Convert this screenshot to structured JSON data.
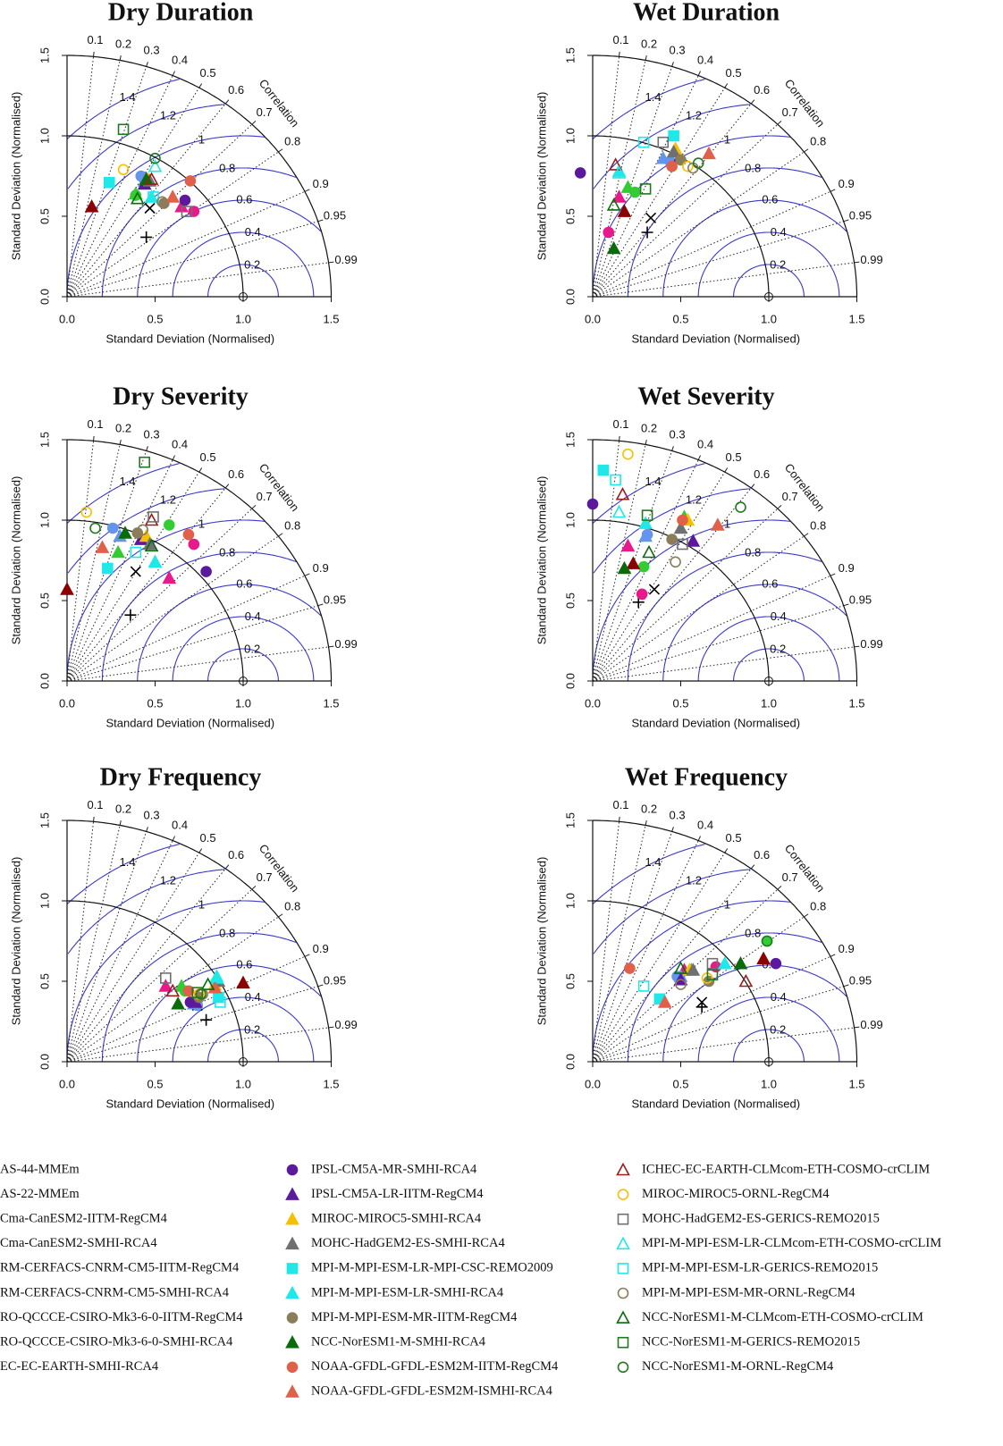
{
  "chart_data": [
    {
      "type": "taylor",
      "title": "Dry Duration",
      "xlabel": "Standard Deviation (Normalised)",
      "ylabel": "Standard Deviation (Normalised)",
      "corr_label": "Correlation",
      "xlim": [
        0,
        1.5
      ],
      "ylim": [
        0,
        1.5
      ],
      "xticks": [
        {
          "value": 0,
          "label": "0.0"
        },
        0.5,
        {
          "value": 1,
          "label": "1.0"
        },
        1.5
      ],
      "yticks": [
        {
          "value": 0,
          "label": "0.0"
        },
        0.5,
        {
          "value": 1,
          "label": "1.0"
        },
        1.5
      ],
      "corr_ticks": [
        0.1,
        0.2,
        0.3,
        0.4,
        0.5,
        0.6,
        0.7,
        0.8,
        0.9,
        0.95,
        0.99
      ],
      "rms_ticks": [
        0.2,
        0.4,
        0.6,
        0.8,
        1,
        1.2,
        1.4
      ],
      "reference": 1,
      "x": [
        0.47,
        0.45,
        0.39,
        0.39,
        0.72,
        0.65,
        0.42,
        0.44,
        0.14,
        0.67,
        0.44,
        0.46,
        0.47,
        0.24,
        0.48,
        0.55,
        0.45,
        0.7,
        0.6,
        0.48,
        0.32,
        0.68,
        0.5,
        0.49,
        0.54,
        0.4,
        0.32,
        0.5
      ],
      "y": [
        0.55,
        0.37,
        0.63,
        0.64,
        0.53,
        0.56,
        0.75,
        0.72,
        0.56,
        0.6,
        0.7,
        0.73,
        0.72,
        0.71,
        0.62,
        0.58,
        0.73,
        0.72,
        0.62,
        0.73,
        0.79,
        0.53,
        0.81,
        0.62,
        0.59,
        0.61,
        1.04,
        0.86
      ]
    },
    {
      "type": "taylor",
      "title": "Wet Duration",
      "xlabel": "Standard Deviation (Normalised)",
      "ylabel": "Standard Deviation (Normalised)",
      "corr_label": "Correlation",
      "xlim": [
        0,
        1.5
      ],
      "ylim": [
        0,
        1.5
      ],
      "xticks": [
        {
          "value": 0,
          "label": "0.0"
        },
        0.5,
        {
          "value": 1,
          "label": "1.0"
        },
        1.5
      ],
      "yticks": [
        {
          "value": 0,
          "label": "0.0"
        },
        0.5,
        {
          "value": 1,
          "label": "1.0"
        },
        1.5
      ],
      "corr_ticks": [
        0.1,
        0.2,
        0.3,
        0.4,
        0.5,
        0.6,
        0.7,
        0.8,
        0.9,
        0.95,
        0.99
      ],
      "rms_ticks": [
        0.2,
        0.4,
        0.6,
        0.8,
        1,
        1.2,
        1.4
      ],
      "reference": 1,
      "x": [
        0.33,
        0.31,
        0.24,
        0.2,
        0.09,
        0.15,
        0.44,
        0.4,
        0.18,
        -0.07,
        0.49,
        0.47,
        0.46,
        0.46,
        0.15,
        0.5,
        0.12,
        0.45,
        0.66,
        0.13,
        0.54,
        0.4,
        0.15,
        0.29,
        0.57,
        0.12,
        0.3,
        0.6
      ],
      "y": [
        0.49,
        0.4,
        0.65,
        0.68,
        0.4,
        0.62,
        0.84,
        0.86,
        0.53,
        0.77,
        0.86,
        0.92,
        0.9,
        1.0,
        0.78,
        0.85,
        0.3,
        0.81,
        0.89,
        0.82,
        0.81,
        0.96,
        0.77,
        0.96,
        0.8,
        0.57,
        0.67,
        0.83
      ]
    },
    {
      "type": "taylor",
      "title": "Dry Severity",
      "xlabel": "Standard Deviation (Normalised)",
      "ylabel": "Standard Deviation (Normalised)",
      "corr_label": "Correlation",
      "xlim": [
        0,
        1.5
      ],
      "ylim": [
        0,
        1.5
      ],
      "xticks": [
        {
          "value": 0,
          "label": "0.0"
        },
        0.5,
        {
          "value": 1,
          "label": "1.0"
        },
        1.5
      ],
      "yticks": [
        {
          "value": 0,
          "label": "0.0"
        },
        0.5,
        {
          "value": 1,
          "label": "1.0"
        },
        1.5
      ],
      "corr_ticks": [
        0.1,
        0.2,
        0.3,
        0.4,
        0.5,
        0.6,
        0.7,
        0.8,
        0.9,
        0.95,
        0.99
      ],
      "rms_ticks": [
        0.2,
        0.4,
        0.6,
        0.8,
        1,
        1.2,
        1.4
      ],
      "reference": 1,
      "x": [
        0.39,
        0.36,
        0.58,
        0.29,
        0.72,
        0.58,
        0.26,
        0.3,
        0.0,
        0.79,
        0.42,
        0.45,
        0.47,
        0.23,
        0.5,
        0.4,
        0.33,
        0.69,
        0.2,
        0.48,
        0.11,
        0.49,
        0.5,
        0.39,
        0.43,
        0.48,
        0.44,
        0.16
      ],
      "y": [
        0.68,
        0.41,
        0.97,
        0.8,
        0.85,
        0.64,
        0.95,
        0.9,
        0.57,
        0.68,
        0.88,
        0.9,
        0.85,
        0.7,
        0.74,
        0.92,
        0.92,
        0.91,
        0.83,
        1.0,
        1.05,
        1.02,
        0.74,
        0.8,
        0.94,
        0.84,
        1.36,
        0.95
      ]
    },
    {
      "type": "taylor",
      "title": "Wet Severity",
      "xlabel": "Standard Deviation (Normalised)",
      "ylabel": "Standard Deviation (Normalised)",
      "corr_label": "Correlation",
      "xlim": [
        0,
        1.5
      ],
      "ylim": [
        0,
        1.5
      ],
      "xticks": [
        {
          "value": 0,
          "label": "0.0"
        },
        0.5,
        {
          "value": 1,
          "label": "1.0"
        },
        1.5
      ],
      "yticks": [
        {
          "value": 0,
          "label": "0.0"
        },
        0.5,
        {
          "value": 1,
          "label": "1.0"
        },
        1.5
      ],
      "corr_ticks": [
        0.1,
        0.2,
        0.3,
        0.4,
        0.5,
        0.6,
        0.7,
        0.8,
        0.9,
        0.95,
        0.99
      ],
      "rms_ticks": [
        0.2,
        0.4,
        0.6,
        0.8,
        1,
        1.2,
        1.4
      ],
      "reference": 1,
      "x": [
        0.35,
        0.26,
        0.29,
        0.52,
        0.28,
        0.2,
        0.31,
        0.3,
        0.23,
        0.0,
        0.57,
        0.54,
        0.5,
        0.06,
        0.3,
        0.45,
        0.18,
        0.51,
        0.71,
        0.17,
        0.2,
        0.51,
        0.15,
        0.13,
        0.47,
        0.32,
        0.31,
        0.84
      ],
      "y": [
        0.57,
        0.49,
        0.71,
        1.02,
        0.54,
        0.84,
        0.91,
        0.9,
        0.73,
        1.1,
        0.87,
        1.0,
        0.95,
        1.31,
        0.98,
        0.88,
        0.7,
        1.0,
        0.97,
        1.16,
        1.41,
        0.85,
        1.05,
        1.25,
        0.74,
        0.8,
        1.03,
        1.08
      ]
    },
    {
      "type": "taylor",
      "title": "Dry Frequency",
      "xlabel": "Standard Deviation (Normalised)",
      "ylabel": "Standard Deviation (Normalised)",
      "corr_label": "Correlation",
      "xlim": [
        0,
        1.5
      ],
      "ylim": [
        0,
        1.5
      ],
      "xticks": [
        {
          "value": 0,
          "label": "0.0"
        },
        0.5,
        {
          "value": 1,
          "label": "1.0"
        },
        1.5
      ],
      "yticks": [
        {
          "value": 0,
          "label": "0.0"
        },
        0.5,
        {
          "value": 1,
          "label": "1.0"
        },
        1.5
      ],
      "corr_ticks": [
        0.1,
        0.2,
        0.3,
        0.4,
        0.5,
        0.6,
        0.7,
        0.8,
        0.9,
        0.95,
        0.99
      ],
      "rms_ticks": [
        0.2,
        0.4,
        0.6,
        0.8,
        1,
        1.2,
        1.4
      ],
      "reference": 1,
      "x": [
        0.74,
        0.79,
        0.67,
        0.65,
        0.72,
        0.56,
        0.74,
        0.72,
        1.0,
        0.7,
        0.73,
        0.84,
        0.86,
        0.86,
        0.85,
        0.75,
        0.63,
        0.69,
        0.84,
        0.6,
        0.75,
        0.56,
        0.85,
        0.87,
        0.77,
        0.8,
        0.74,
        0.76
      ],
      "y": [
        0.35,
        0.26,
        0.44,
        0.47,
        0.37,
        0.47,
        0.35,
        0.36,
        0.49,
        0.37,
        0.37,
        0.48,
        0.5,
        0.4,
        0.52,
        0.4,
        0.36,
        0.44,
        0.46,
        0.44,
        0.42,
        0.52,
        0.53,
        0.37,
        0.42,
        0.48,
        0.43,
        0.42
      ]
    },
    {
      "type": "taylor",
      "title": "Wet Frequency",
      "xlabel": "Standard Deviation (Normalised)",
      "ylabel": "Standard Deviation (Normalised)",
      "corr_label": "Correlation",
      "xlim": [
        0,
        1.5
      ],
      "ylim": [
        0,
        1.5
      ],
      "xticks": [
        {
          "value": 0,
          "label": "0.0"
        },
        0.5,
        {
          "value": 1,
          "label": "1.0"
        },
        1.5
      ],
      "yticks": [
        {
          "value": 0,
          "label": "0.0"
        },
        0.5,
        {
          "value": 1,
          "label": "1.0"
        },
        1.5
      ],
      "corr_ticks": [
        0.1,
        0.2,
        0.3,
        0.4,
        0.5,
        0.6,
        0.7,
        0.8,
        0.9,
        0.95,
        0.99
      ],
      "rms_ticks": [
        0.2,
        0.4,
        0.6,
        0.8,
        1,
        1.2,
        1.4
      ],
      "reference": 1,
      "x": [
        0.62,
        0.62,
        0.99,
        0.56,
        0.7,
        0.52,
        0.48,
        0.5,
        0.97,
        1.04,
        0.5,
        0.55,
        0.57,
        0.38,
        0.75,
        0.66,
        0.84,
        0.21,
        0.41,
        0.87,
        0.65,
        0.68,
        0.75,
        0.29,
        0.5,
        0.5,
        0.68,
        0.99
      ],
      "y": [
        0.37,
        0.34,
        0.75,
        0.57,
        0.59,
        0.57,
        0.53,
        0.53,
        0.64,
        0.61,
        0.51,
        0.57,
        0.57,
        0.39,
        0.61,
        0.5,
        0.61,
        0.58,
        0.37,
        0.5,
        0.52,
        0.61,
        0.61,
        0.47,
        0.48,
        0.58,
        0.54,
        0.75
      ]
    }
  ],
  "legend": [
    {
      "name": "AS-44-MMEm",
      "color": "#000000",
      "marker": "x",
      "filled": false
    },
    {
      "name": "AS-22-MMEm",
      "color": "#000000",
      "marker": "plus",
      "filled": false
    },
    {
      "name": "Cma-CanESM2-IITM-RegCM4",
      "color": "#33cc33",
      "marker": "circle",
      "filled": true
    },
    {
      "name": "Cma-CanESM2-SMHI-RCA4",
      "color": "#33cc33",
      "marker": "triangle",
      "filled": true
    },
    {
      "name": "RM-CERFACS-CNRM-CM5-IITM-RegCM4",
      "color": "#e8198a",
      "marker": "circle",
      "filled": true
    },
    {
      "name": "RM-CERFACS-CNRM-CM5-SMHI-RCA4",
      "color": "#e8198a",
      "marker": "triangle",
      "filled": true
    },
    {
      "name": "RO-QCCCE-CSIRO-Mk3-6-0-IITM-RegCM4",
      "color": "#6495ed",
      "marker": "circle",
      "filled": true
    },
    {
      "name": "RO-QCCCE-CSIRO-Mk3-6-0-SMHI-RCA4",
      "color": "#6495ed",
      "marker": "triangle",
      "filled": true
    },
    {
      "name": "EC-EC-EARTH-SMHI-RCA4",
      "color": "#8b0000",
      "marker": "triangle",
      "filled": true
    },
    {
      "name": "IPSL-CM5A-MR-SMHI-RCA4",
      "color": "#5b1a9e",
      "marker": "circle",
      "filled": true
    },
    {
      "name": "IPSL-CM5A-LR-IITM-RegCM4",
      "color": "#5b1a9e",
      "marker": "triangle",
      "filled": true
    },
    {
      "name": "MIROC-MIROC5-SMHI-RCA4",
      "color": "#f5c000",
      "marker": "triangle",
      "filled": true
    },
    {
      "name": "MOHC-HadGEM2-ES-SMHI-RCA4",
      "color": "#707070",
      "marker": "triangle",
      "filled": true
    },
    {
      "name": "MPI-M-MPI-ESM-LR-MPI-CSC-REMO2009",
      "color": "#1ee8e8",
      "marker": "square",
      "filled": true
    },
    {
      "name": "MPI-M-MPI-ESM-LR-SMHI-RCA4",
      "color": "#1ee8e8",
      "marker": "triangle",
      "filled": true
    },
    {
      "name": "MPI-M-MPI-ESM-MR-IITM-RegCM4",
      "color": "#8b7d5a",
      "marker": "circle",
      "filled": true
    },
    {
      "name": "NCC-NorESM1-M-SMHI-RCA4",
      "color": "#0a6b0a",
      "marker": "triangle",
      "filled": true
    },
    {
      "name": "NOAA-GFDL-GFDL-ESM2M-IITM-RegCM4",
      "color": "#e0604a",
      "marker": "circle",
      "filled": true
    },
    {
      "name": "NOAA-GFDL-GFDL-ESM2M-ISMHI-RCA4",
      "color": "#e0604a",
      "marker": "triangle",
      "filled": true
    },
    {
      "name": "ICHEC-EC-EARTH-CLMcom-ETH-COSMO-crCLIM",
      "color": "#9b1c1c",
      "marker": "triangle",
      "filled": false
    },
    {
      "name": "MIROC-MIROC5-ORNL-RegCM4",
      "color": "#f5c000",
      "marker": "circle",
      "filled": false
    },
    {
      "name": "MOHC-HadGEM2-ES-GERICS-REMO2015",
      "color": "#707070",
      "marker": "square",
      "filled": false
    },
    {
      "name": "MPI-M-MPI-ESM-LR-CLMcom-ETH-COSMO-crCLIM",
      "color": "#1ee8e8",
      "marker": "triangle",
      "filled": false
    },
    {
      "name": "MPI-M-MPI-ESM-LR-GERICS-REMO2015",
      "color": "#1ee8e8",
      "marker": "square",
      "filled": false
    },
    {
      "name": "MPI-M-MPI-ESM-MR-ORNL-RegCM4",
      "color": "#8b7d5a",
      "marker": "circle",
      "filled": false
    },
    {
      "name": "NCC-NorESM1-M-CLMcom-ETH-COSMO-crCLIM",
      "color": "#0a6b0a",
      "marker": "triangle",
      "filled": false
    },
    {
      "name": "NCC-NorESM1-M-GERICS-REMO2015",
      "color": "#1f7a1f",
      "marker": "square",
      "filled": false
    },
    {
      "name": "NCC-NorESM1-M-ORNL-RegCM4",
      "color": "#1f7a1f",
      "marker": "circle",
      "filled": false
    }
  ]
}
